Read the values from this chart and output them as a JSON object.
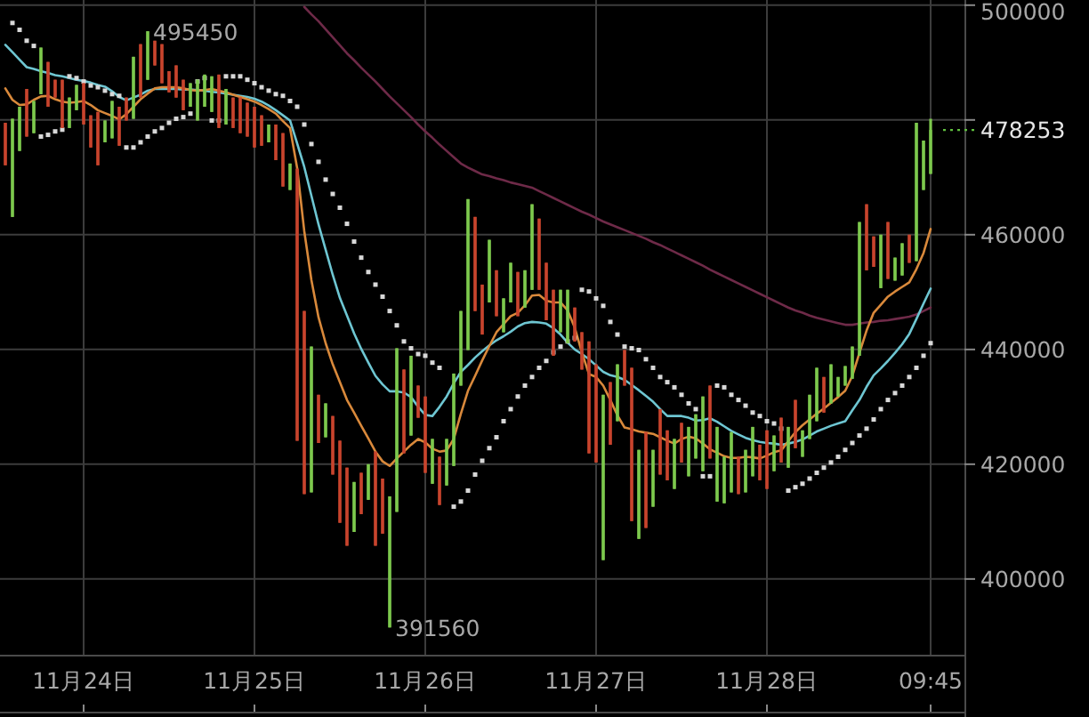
{
  "chart_data": {
    "type": "candlestick",
    "ylim": [
      386800,
      500900
    ],
    "categories": [
      null,
      null,
      null,
      null,
      null,
      null,
      null,
      null,
      null,
      null,
      null,
      "11月24日",
      null,
      null,
      null,
      null,
      null,
      null,
      null,
      null,
      null,
      null,
      null,
      null,
      null,
      null,
      null,
      null,
      null,
      null,
      null,
      null,
      null,
      null,
      null,
      "11月25日",
      null,
      null,
      null,
      null,
      null,
      null,
      null,
      null,
      null,
      null,
      null,
      null,
      null,
      null,
      null,
      null,
      null,
      null,
      null,
      null,
      null,
      null,
      null,
      "11月26日",
      null,
      null,
      null,
      null,
      null,
      null,
      null,
      null,
      null,
      null,
      null,
      null,
      null,
      null,
      null,
      null,
      null,
      null,
      null,
      null,
      null,
      null,
      null,
      "11月27日",
      null,
      null,
      null,
      null,
      null,
      null,
      null,
      null,
      null,
      null,
      null,
      null,
      null,
      null,
      null,
      null,
      null,
      null,
      null,
      null,
      null,
      null,
      null,
      "11月28日",
      null,
      null,
      null,
      null,
      null,
      null,
      null,
      null,
      null,
      null,
      null,
      null,
      null,
      null,
      null,
      null,
      null,
      null,
      null,
      null,
      null,
      null,
      "09:45"
    ],
    "yticks": [
      400000,
      420000,
      440000,
      460000,
      {
        "value": 480000,
        "label": null
      },
      500000
    ],
    "grid": true,
    "ohlc": [
      [
        479500,
        479500,
        472100,
        472100
      ],
      [
        463100,
        480200,
        463100,
        480200
      ],
      [
        474600,
        482300,
        474600,
        482300
      ],
      [
        485400,
        485400,
        477100,
        477100
      ],
      [
        477700,
        483300,
        477700,
        483300
      ],
      [
        484500,
        492600,
        484500,
        492600
      ],
      [
        490100,
        490100,
        482300,
        482300
      ],
      [
        487000,
        487000,
        483900,
        483900
      ],
      [
        487000,
        487000,
        478600,
        478600
      ],
      [
        478600,
        483900,
        478600,
        483900
      ],
      [
        481700,
        486100,
        481700,
        486100
      ],
      [
        486400,
        486400,
        479200,
        479200
      ],
      [
        480800,
        480800,
        475200,
        475200
      ],
      [
        481400,
        481400,
        472100,
        472100
      ],
      [
        476100,
        479900,
        476100,
        479900
      ],
      [
        476800,
        483300,
        476800,
        483300
      ],
      [
        482300,
        482300,
        475500,
        475500
      ],
      [
        483900,
        483900,
        479900,
        479900
      ],
      [
        480200,
        491000,
        480200,
        491000
      ],
      [
        493200,
        493200,
        483900,
        483900
      ],
      [
        487000,
        495450,
        487000,
        495450
      ],
      [
        493800,
        493800,
        489500,
        489500
      ],
      [
        493200,
        493200,
        486400,
        486400
      ],
      [
        488500,
        488500,
        484800,
        484800
      ],
      [
        489500,
        489500,
        483900,
        483900
      ],
      [
        487000,
        487000,
        481700,
        481700
      ],
      [
        482300,
        486400,
        482300,
        486400
      ],
      [
        479900,
        487000,
        479900,
        487000
      ],
      [
        482300,
        487900,
        482300,
        487900
      ],
      [
        481400,
        487600,
        481400,
        487600
      ],
      [
        487900,
        487900,
        478600,
        478600
      ],
      [
        479200,
        485400,
        479200,
        485400
      ],
      [
        483900,
        483900,
        478600,
        478600
      ],
      [
        483900,
        483900,
        477700,
        477700
      ],
      [
        483000,
        483000,
        477100,
        477100
      ],
      [
        482300,
        482300,
        475200,
        475200
      ],
      [
        480800,
        480800,
        475500,
        475500
      ],
      [
        476100,
        479200,
        476100,
        479200
      ],
      [
        479200,
        479200,
        473000,
        473000
      ],
      [
        477700,
        477700,
        468400,
        468400
      ],
      [
        467800,
        472400,
        467800,
        472400
      ],
      [
        471500,
        471500,
        424100,
        424100
      ],
      [
        446700,
        446700,
        414800,
        414800
      ],
      [
        415100,
        440500,
        415100,
        440500
      ],
      [
        432100,
        432100,
        423700,
        423700
      ],
      [
        424700,
        430600,
        424700,
        430600
      ],
      [
        428400,
        428400,
        418200,
        418200
      ],
      [
        424100,
        424100,
        409800,
        409800
      ],
      [
        419400,
        419400,
        405800,
        405800
      ],
      [
        408200,
        416900,
        408200,
        416900
      ],
      [
        418500,
        418500,
        411300,
        411300
      ],
      [
        413800,
        420000,
        413800,
        420000
      ],
      [
        422200,
        422200,
        405800,
        405800
      ],
      [
        417500,
        417500,
        407900,
        407900
      ],
      [
        391560,
        414400,
        391560,
        414400
      ],
      [
        411700,
        440200,
        411700,
        440200
      ],
      [
        436500,
        436500,
        421900,
        421900
      ],
      [
        425000,
        438900,
        425000,
        438900
      ],
      [
        433700,
        433700,
        428100,
        428100
      ],
      [
        431800,
        431800,
        418500,
        418500
      ],
      [
        416600,
        424400,
        416600,
        424400
      ],
      [
        421300,
        421300,
        412900,
        412900
      ],
      [
        416300,
        424400,
        416300,
        424400
      ],
      [
        419700,
        435800,
        419700,
        435800
      ],
      [
        433700,
        446700,
        433700,
        446700
      ],
      [
        439900,
        466200,
        439900,
        466200
      ],
      [
        463100,
        463100,
        446700,
        446700
      ],
      [
        451300,
        451300,
        442600,
        442600
      ],
      [
        448200,
        459100,
        448200,
        459100
      ],
      [
        453800,
        453800,
        445800,
        445800
      ],
      [
        443000,
        448900,
        443000,
        448900
      ],
      [
        448200,
        455100,
        448200,
        455100
      ],
      [
        453500,
        453500,
        445800,
        445800
      ],
      [
        447300,
        453800,
        447300,
        453800
      ],
      [
        450400,
        465300,
        450400,
        465300
      ],
      [
        462800,
        462800,
        450400,
        450400
      ],
      [
        455100,
        455100,
        445100,
        445100
      ],
      [
        450400,
        450400,
        438900,
        438900
      ],
      [
        443000,
        450400,
        443000,
        450400
      ],
      [
        441100,
        450400,
        441100,
        450400
      ],
      [
        447300,
        447300,
        441400,
        441400
      ],
      [
        443000,
        443000,
        436500,
        436500
      ],
      [
        441400,
        441400,
        421900,
        421900
      ],
      [
        437400,
        437400,
        420300,
        420300
      ],
      [
        403300,
        432100,
        403300,
        432100
      ],
      [
        434300,
        434300,
        423400,
        423400
      ],
      [
        427500,
        437400,
        427500,
        437400
      ],
      [
        439900,
        439900,
        433700,
        433700
      ],
      [
        436800,
        436800,
        410100,
        410100
      ],
      [
        407000,
        422500,
        407000,
        422500
      ],
      [
        425600,
        425600,
        408900,
        408900
      ],
      [
        412600,
        422500,
        412600,
        422500
      ],
      [
        429600,
        429600,
        418200,
        418200
      ],
      [
        425900,
        425900,
        417200,
        417200
      ],
      [
        415700,
        424400,
        415700,
        424400
      ],
      [
        427200,
        427200,
        420300,
        420300
      ],
      [
        417900,
        426500,
        417900,
        426500
      ],
      [
        421000,
        428700,
        421000,
        428700
      ],
      [
        418800,
        431800,
        418800,
        431800
      ],
      [
        433700,
        433700,
        421000,
        421000
      ],
      [
        413500,
        426500,
        413500,
        426500
      ],
      [
        413200,
        421300,
        413200,
        421300
      ],
      [
        415100,
        425600,
        415100,
        425600
      ],
      [
        421300,
        421300,
        414800,
        414800
      ],
      [
        415100,
        422500,
        415100,
        422500
      ],
      [
        417900,
        426500,
        417900,
        426500
      ],
      [
        423400,
        423400,
        417200,
        417200
      ],
      [
        425900,
        425900,
        415700,
        415700
      ],
      [
        418800,
        425000,
        418800,
        425000
      ],
      [
        428100,
        428100,
        420300,
        420300
      ],
      [
        419400,
        426500,
        419400,
        426500
      ],
      [
        431200,
        431200,
        422800,
        422800
      ],
      [
        421300,
        425900,
        421300,
        425900
      ],
      [
        424400,
        432100,
        424400,
        432100
      ],
      [
        427500,
        436800,
        427500,
        436800
      ],
      [
        435200,
        435200,
        429000,
        429000
      ],
      [
        430600,
        437400,
        430600,
        437400
      ],
      [
        431800,
        435200,
        431800,
        435200
      ],
      [
        433700,
        437100,
        433700,
        437100
      ],
      [
        434900,
        440500,
        434900,
        440500
      ],
      [
        438900,
        462200,
        438900,
        462200
      ],
      [
        465300,
        465300,
        453800,
        453800
      ],
      [
        459700,
        459700,
        454400,
        454400
      ],
      [
        450700,
        460000,
        450700,
        460000
      ],
      [
        462200,
        462200,
        452300,
        452300
      ],
      [
        452000,
        456000,
        452000,
        456000
      ],
      [
        452900,
        458500,
        452900,
        458500
      ],
      [
        460000,
        460000,
        455100,
        455100
      ],
      [
        455400,
        479500,
        455400,
        479500
      ],
      [
        467800,
        476400,
        467800,
        476400
      ],
      [
        470600,
        480200,
        470600,
        478253
      ]
    ],
    "colors": [
      "#c8442d",
      "#7dc94d",
      "#7dc94d",
      "#c8442d",
      "#7dc94d",
      "#7dc94d",
      "#c8442d",
      "#c8442d",
      "#c8442d",
      "#7dc94d",
      "#7dc94d",
      "#c8442d",
      "#c8442d",
      "#c8442d",
      "#7dc94d",
      "#7dc94d",
      "#c8442d",
      "#c8442d",
      "#7dc94d",
      "#c8442d",
      "#7dc94d",
      "#c8442d",
      "#c8442d",
      "#c8442d",
      "#c8442d",
      "#c8442d",
      "#7dc94d",
      "#7dc94d",
      "#7dc94d",
      "#7dc94d",
      "#c8442d",
      "#7dc94d",
      "#c8442d",
      "#c8442d",
      "#c8442d",
      "#c8442d",
      "#c8442d",
      "#7dc94d",
      "#c8442d",
      "#c8442d",
      "#7dc94d",
      "#c8442d",
      "#c8442d",
      "#7dc94d",
      "#c8442d",
      "#7dc94d",
      "#c8442d",
      "#c8442d",
      "#c8442d",
      "#7dc94d",
      "#c8442d",
      "#7dc94d",
      "#c8442d",
      "#c8442d",
      "#7dc94d",
      "#7dc94d",
      "#c8442d",
      "#7dc94d",
      "#c8442d",
      "#c8442d",
      "#7dc94d",
      "#c8442d",
      "#7dc94d",
      "#7dc94d",
      "#7dc94d",
      "#7dc94d",
      "#c8442d",
      "#c8442d",
      "#7dc94d",
      "#c8442d",
      "#7dc94d",
      "#7dc94d",
      "#c8442d",
      "#7dc94d",
      "#7dc94d",
      "#c8442d",
      "#c8442d",
      "#c8442d",
      "#7dc94d",
      "#7dc94d",
      "#c8442d",
      "#c8442d",
      "#c8442d",
      "#c8442d",
      "#7dc94d",
      "#c8442d",
      "#7dc94d",
      "#c8442d",
      "#c8442d",
      "#7dc94d",
      "#c8442d",
      "#7dc94d",
      "#c8442d",
      "#c8442d",
      "#7dc94d",
      "#c8442d",
      "#7dc94d",
      "#7dc94d",
      "#7dc94d",
      "#c8442d",
      "#7dc94d",
      "#7dc94d",
      "#7dc94d",
      "#c8442d",
      "#7dc94d",
      "#7dc94d",
      "#c8442d",
      "#c8442d",
      "#7dc94d",
      "#c8442d",
      "#7dc94d",
      "#c8442d",
      "#7dc94d",
      "#7dc94d",
      "#7dc94d",
      "#c8442d",
      "#7dc94d",
      "#7dc94d",
      "#7dc94d",
      "#7dc94d",
      "#7dc94d",
      "#c8442d",
      "#c8442d",
      "#7dc94d",
      "#c8442d",
      "#7dc94d",
      "#7dc94d",
      "#c8442d",
      "#7dc94d",
      "#7dc94d",
      "#7dc94d"
    ],
    "series": [
      {
        "type": "line",
        "color": "#6e2a48",
        "values": [
          null,
          null,
          null,
          null,
          null,
          null,
          null,
          null,
          null,
          null,
          null,
          null,
          null,
          null,
          null,
          null,
          null,
          null,
          null,
          null,
          null,
          null,
          null,
          null,
          null,
          null,
          null,
          null,
          null,
          null,
          null,
          null,
          null,
          null,
          null,
          null,
          null,
          null,
          null,
          null,
          null,
          null,
          499700,
          498400,
          497200,
          495800,
          494400,
          493000,
          491600,
          490400,
          489100,
          487900,
          486700,
          485400,
          484100,
          482900,
          481700,
          480500,
          479200,
          478000,
          476900,
          475700,
          474600,
          473500,
          472400,
          471700,
          471100,
          470500,
          470200,
          469800,
          469500,
          469100,
          468800,
          468500,
          468200,
          467600,
          467000,
          466400,
          465800,
          465200,
          464600,
          464000,
          463500,
          462900,
          462300,
          461800,
          461300,
          460800,
          460300,
          459800,
          459300,
          458700,
          458200,
          457600,
          457000,
          456400,
          455800,
          455200,
          454600,
          453900,
          453300,
          452700,
          452100,
          451500,
          450900,
          450300,
          449700,
          449100,
          448500,
          447900,
          447300,
          446800,
          446400,
          445900,
          445500,
          445200,
          444900,
          444600,
          444300,
          444300,
          444500,
          444700,
          444800,
          445000,
          445100,
          445300,
          445500,
          445700,
          446100,
          446700,
          447300
        ]
      },
      {
        "type": "line",
        "color": "#6ec6d2",
        "values": [
          493100,
          491800,
          490500,
          489200,
          488900,
          488500,
          488200,
          487800,
          487600,
          487300,
          487000,
          486800,
          486500,
          486100,
          485800,
          485000,
          484000,
          483400,
          483900,
          484400,
          485100,
          485400,
          485400,
          485400,
          485400,
          485300,
          485300,
          485200,
          485100,
          484900,
          484800,
          484600,
          484400,
          484200,
          484000,
          483700,
          483200,
          482500,
          481700,
          480800,
          479900,
          475900,
          471800,
          466800,
          461800,
          457400,
          453000,
          449000,
          445900,
          442800,
          440100,
          437700,
          435400,
          433900,
          432700,
          432700,
          432500,
          431700,
          430000,
          428600,
          428400,
          430000,
          431800,
          434100,
          436100,
          437300,
          438600,
          439700,
          440700,
          441600,
          442300,
          443100,
          444000,
          444600,
          444800,
          444700,
          444500,
          443700,
          442600,
          441200,
          440000,
          439200,
          438300,
          437200,
          436100,
          435500,
          435200,
          434700,
          433800,
          432900,
          431900,
          430900,
          429600,
          428400,
          428400,
          428400,
          428100,
          427600,
          427700,
          428000,
          427400,
          426600,
          425800,
          425200,
          424600,
          424200,
          423900,
          423700,
          423600,
          423400,
          423600,
          423900,
          424300,
          425000,
          425700,
          426200,
          426700,
          427100,
          427500,
          429400,
          431200,
          433500,
          435500,
          436700,
          438000,
          439400,
          440900,
          442700,
          445300,
          448000,
          450600
        ]
      },
      {
        "type": "line",
        "color": "#d9893b",
        "values": [
          485500,
          483500,
          482600,
          482700,
          483500,
          484100,
          484200,
          483600,
          483200,
          483000,
          483100,
          483300,
          482600,
          481700,
          481200,
          480700,
          480100,
          481000,
          482300,
          483600,
          484600,
          485500,
          485700,
          485700,
          485700,
          485500,
          485200,
          485100,
          485200,
          485400,
          485100,
          484800,
          484400,
          484000,
          483600,
          483200,
          482600,
          481900,
          481100,
          479800,
          478600,
          471600,
          460600,
          452100,
          445600,
          441100,
          437400,
          434300,
          431200,
          429000,
          426700,
          424500,
          422200,
          420500,
          419700,
          421000,
          422200,
          423400,
          424400,
          423800,
          422700,
          422200,
          422400,
          424400,
          428800,
          432800,
          435400,
          438100,
          440600,
          443000,
          444400,
          445800,
          446400,
          447700,
          449400,
          449500,
          448500,
          448200,
          448200,
          446800,
          443800,
          439500,
          435700,
          435200,
          433700,
          431200,
          428500,
          426400,
          426100,
          425700,
          425500,
          425300,
          424700,
          424100,
          423600,
          424400,
          424800,
          424500,
          423600,
          422600,
          422000,
          421400,
          421100,
          421100,
          421300,
          421200,
          421000,
          421500,
          422100,
          422400,
          424000,
          425600,
          426800,
          427800,
          428800,
          429700,
          430700,
          431700,
          432800,
          435400,
          439400,
          443300,
          446400,
          447800,
          449200,
          450100,
          450900,
          451700,
          454000,
          456800,
          461000
        ]
      },
      {
        "type": "scatter",
        "color": "#d8d8d8",
        "marker": "square",
        "values": [
          null,
          496900,
          495700,
          493800,
          492900,
          477100,
          477400,
          478000,
          478300,
          487600,
          487300,
          486700,
          486000,
          485700,
          485100,
          484500,
          484200,
          475200,
          475200,
          476100,
          477100,
          478000,
          478600,
          479500,
          480200,
          480500,
          481100,
          486700,
          487300,
          479900,
          479900,
          487600,
          487600,
          487600,
          487000,
          486400,
          485700,
          485100,
          484500,
          484200,
          483300,
          482300,
          479200,
          475800,
          472700,
          469600,
          467100,
          464700,
          461900,
          458800,
          456000,
          453500,
          451300,
          449200,
          446700,
          444200,
          441400,
          440200,
          439200,
          438900,
          437700,
          436800,
          null,
          412600,
          413500,
          415400,
          418200,
          420600,
          422800,
          424700,
          427500,
          429600,
          431800,
          433700,
          435200,
          436800,
          438000,
          439500,
          440500,
          441400,
          442000,
          450400,
          450100,
          448900,
          447600,
          444800,
          442600,
          440500,
          440200,
          439900,
          438300,
          436800,
          435200,
          434300,
          433400,
          432100,
          430600,
          429600,
          417900,
          417900,
          433700,
          433400,
          432100,
          431200,
          430200,
          429000,
          428400,
          427500,
          427100,
          426200,
          415400,
          416000,
          416600,
          417500,
          418500,
          419400,
          420300,
          421300,
          422500,
          423700,
          425000,
          426200,
          427800,
          429600,
          431200,
          432400,
          433700,
          435200,
          436800,
          438900,
          441100
        ]
      }
    ],
    "annotations": [
      "495450",
      "391560"
    ],
    "ref_lines": [
      {
        "axis": "y",
        "value": 478253,
        "label": "478253",
        "color": "#5fbf3f",
        "line_style": "dotted"
      }
    ]
  }
}
